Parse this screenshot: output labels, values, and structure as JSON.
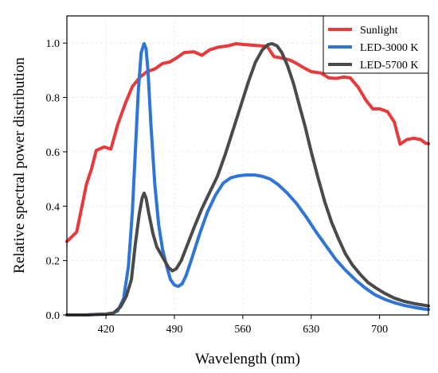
{
  "chart_data": {
    "type": "line",
    "title": "",
    "xlabel": "Wavelength (nm)",
    "ylabel": "Relative spectral power distribution",
    "xlim": [
      380,
      750
    ],
    "ylim": [
      0,
      1.1
    ],
    "x_ticks": [
      420,
      490,
      560,
      630,
      700
    ],
    "y_ticks": [
      0.0,
      0.2,
      0.4,
      0.6,
      0.8,
      1.0
    ],
    "y_tick_labels": [
      "0.0",
      "0.2",
      "0.4",
      "0.6",
      "0.8",
      "1.0"
    ],
    "grid": true,
    "legend_position": "top-right",
    "series": [
      {
        "name": "Sunlight",
        "color": "#e8393b",
        "points": [
          [
            380,
            0.27
          ],
          [
            390,
            0.305
          ],
          [
            400,
            0.48
          ],
          [
            405,
            0.535
          ],
          [
            410,
            0.605
          ],
          [
            418,
            0.618
          ],
          [
            425,
            0.61
          ],
          [
            432,
            0.7
          ],
          [
            440,
            0.78
          ],
          [
            447,
            0.84
          ],
          [
            455,
            0.875
          ],
          [
            462,
            0.895
          ],
          [
            470,
            0.905
          ],
          [
            478,
            0.925
          ],
          [
            485,
            0.93
          ],
          [
            492,
            0.945
          ],
          [
            500,
            0.965
          ],
          [
            510,
            0.968
          ],
          [
            518,
            0.955
          ],
          [
            526,
            0.975
          ],
          [
            535,
            0.985
          ],
          [
            545,
            0.99
          ],
          [
            553,
            0.998
          ],
          [
            560,
            0.995
          ],
          [
            568,
            0.993
          ],
          [
            578,
            0.99
          ],
          [
            585,
            0.988
          ],
          [
            592,
            0.95
          ],
          [
            600,
            0.945
          ],
          [
            608,
            0.938
          ],
          [
            615,
            0.925
          ],
          [
            622,
            0.91
          ],
          [
            630,
            0.895
          ],
          [
            640,
            0.89
          ],
          [
            648,
            0.872
          ],
          [
            656,
            0.87
          ],
          [
            663,
            0.875
          ],
          [
            670,
            0.872
          ],
          [
            678,
            0.838
          ],
          [
            686,
            0.79
          ],
          [
            693,
            0.758
          ],
          [
            700,
            0.758
          ],
          [
            708,
            0.748
          ],
          [
            715,
            0.71
          ],
          [
            721,
            0.628
          ],
          [
            728,
            0.645
          ],
          [
            735,
            0.65
          ],
          [
            742,
            0.645
          ],
          [
            747,
            0.632
          ],
          [
            750,
            0.63
          ]
        ]
      },
      {
        "name": "LED-3000 K",
        "color": "#2f75d8",
        "points": [
          [
            380,
            0.0
          ],
          [
            400,
            0.0
          ],
          [
            412,
            0.002
          ],
          [
            420,
            0.003
          ],
          [
            426,
            0.005
          ],
          [
            432,
            0.015
          ],
          [
            438,
            0.06
          ],
          [
            443,
            0.18
          ],
          [
            447,
            0.38
          ],
          [
            450,
            0.6
          ],
          [
            453,
            0.82
          ],
          [
            456,
            0.965
          ],
          [
            459,
            0.998
          ],
          [
            461,
            0.98
          ],
          [
            463,
            0.9
          ],
          [
            466,
            0.7
          ],
          [
            470,
            0.48
          ],
          [
            474,
            0.33
          ],
          [
            478,
            0.24
          ],
          [
            482,
            0.18
          ],
          [
            486,
            0.13
          ],
          [
            490,
            0.11
          ],
          [
            494,
            0.105
          ],
          [
            498,
            0.115
          ],
          [
            502,
            0.145
          ],
          [
            508,
            0.21
          ],
          [
            516,
            0.3
          ],
          [
            524,
            0.38
          ],
          [
            532,
            0.44
          ],
          [
            540,
            0.485
          ],
          [
            548,
            0.505
          ],
          [
            556,
            0.512
          ],
          [
            564,
            0.515
          ],
          [
            572,
            0.515
          ],
          [
            580,
            0.51
          ],
          [
            588,
            0.5
          ],
          [
            596,
            0.48
          ],
          [
            605,
            0.45
          ],
          [
            615,
            0.41
          ],
          [
            625,
            0.36
          ],
          [
            635,
            0.305
          ],
          [
            645,
            0.255
          ],
          [
            655,
            0.205
          ],
          [
            665,
            0.165
          ],
          [
            675,
            0.13
          ],
          [
            685,
            0.1
          ],
          [
            695,
            0.075
          ],
          [
            705,
            0.058
          ],
          [
            715,
            0.045
          ],
          [
            725,
            0.035
          ],
          [
            735,
            0.028
          ],
          [
            745,
            0.022
          ],
          [
            750,
            0.02
          ]
        ]
      },
      {
        "name": "LED-5700 K",
        "color": "#4a4a4a",
        "points": [
          [
            380,
            0.0
          ],
          [
            400,
            0.0
          ],
          [
            412,
            0.002
          ],
          [
            420,
            0.003
          ],
          [
            428,
            0.008
          ],
          [
            435,
            0.03
          ],
          [
            441,
            0.07
          ],
          [
            446,
            0.13
          ],
          [
            450,
            0.26
          ],
          [
            454,
            0.37
          ],
          [
            457,
            0.43
          ],
          [
            459,
            0.448
          ],
          [
            461,
            0.43
          ],
          [
            464,
            0.37
          ],
          [
            468,
            0.3
          ],
          [
            472,
            0.25
          ],
          [
            476,
            0.225
          ],
          [
            480,
            0.2
          ],
          [
            484,
            0.175
          ],
          [
            488,
            0.162
          ],
          [
            492,
            0.17
          ],
          [
            497,
            0.2
          ],
          [
            503,
            0.255
          ],
          [
            510,
            0.32
          ],
          [
            518,
            0.39
          ],
          [
            526,
            0.45
          ],
          [
            534,
            0.51
          ],
          [
            542,
            0.59
          ],
          [
            550,
            0.68
          ],
          [
            558,
            0.77
          ],
          [
            566,
            0.86
          ],
          [
            573,
            0.93
          ],
          [
            580,
            0.975
          ],
          [
            586,
            0.995
          ],
          [
            590,
            0.998
          ],
          [
            595,
            0.99
          ],
          [
            600,
            0.965
          ],
          [
            606,
            0.915
          ],
          [
            612,
            0.85
          ],
          [
            618,
            0.77
          ],
          [
            624,
            0.69
          ],
          [
            630,
            0.6
          ],
          [
            637,
            0.505
          ],
          [
            644,
            0.415
          ],
          [
            651,
            0.34
          ],
          [
            658,
            0.28
          ],
          [
            665,
            0.225
          ],
          [
            672,
            0.185
          ],
          [
            680,
            0.15
          ],
          [
            688,
            0.12
          ],
          [
            696,
            0.1
          ],
          [
            705,
            0.08
          ],
          [
            715,
            0.062
          ],
          [
            725,
            0.05
          ],
          [
            735,
            0.042
          ],
          [
            745,
            0.036
          ],
          [
            750,
            0.033
          ]
        ]
      }
    ]
  }
}
